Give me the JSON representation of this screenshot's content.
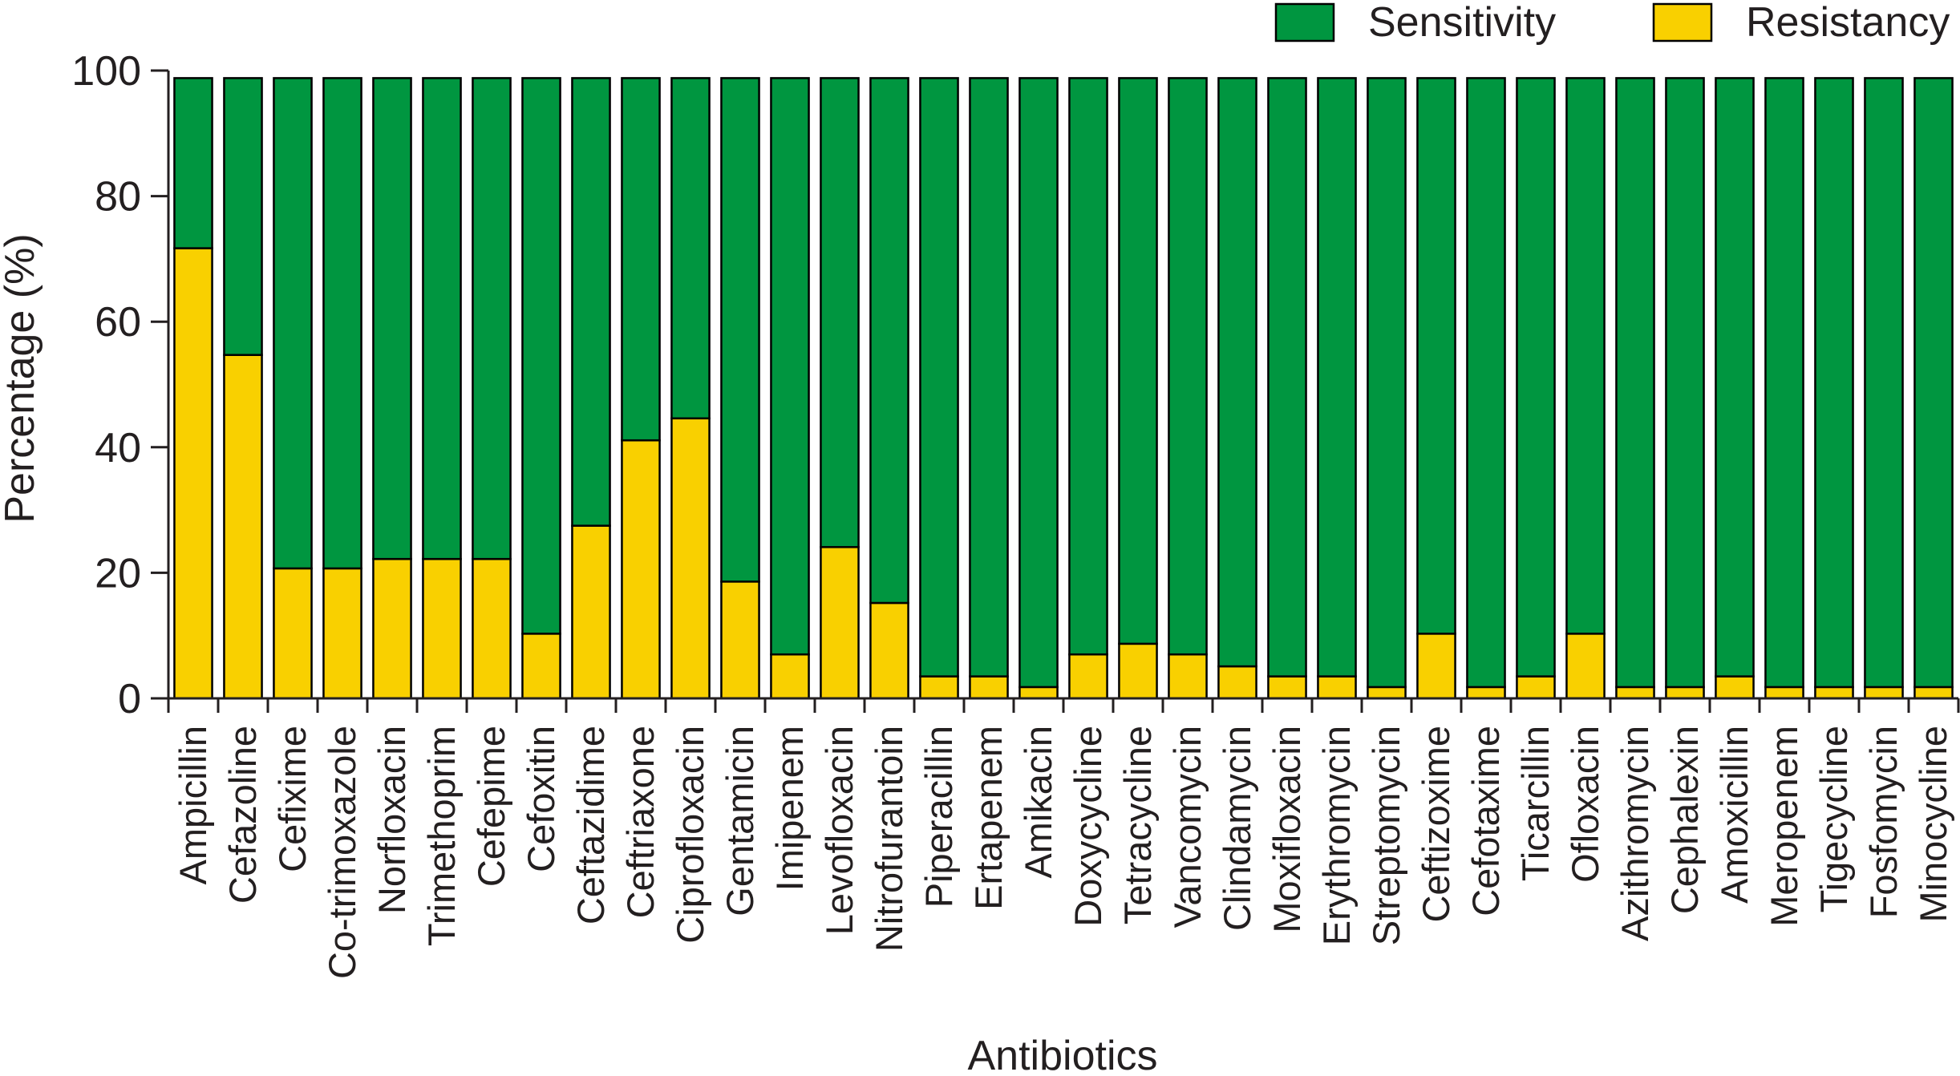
{
  "chart_data": {
    "type": "bar",
    "stacked": true,
    "xlabel": "Antibiotics",
    "ylabel": "Percentage (%)",
    "ylim": [
      0,
      100
    ],
    "yticks": [
      0,
      20,
      40,
      60,
      80,
      100
    ],
    "grid": false,
    "legend_position": "top-right",
    "categories": [
      "Ampicillin",
      "Cefazoline",
      "Cefixime",
      "Co-trimoxazole",
      "Norfloxacin",
      "Trimethoprim",
      "Cefepime",
      "Cefoxitin",
      "Ceftazidime",
      "Ceftriaxone",
      "Ciprofloxacin",
      "Gentamicin",
      "Imipenem",
      "Levofloxacin",
      "Nitrofurantoin",
      "Piperacillin",
      "Ertapenem",
      "Amikacin",
      "Doxycycline",
      "Tetracycline",
      "Vancomycin",
      "Clindamycin",
      "Moxifloxacin",
      "Erythromycin",
      "Streptomycin",
      "Ceftizoxime",
      "Cefotaxime",
      "Ticarcillin",
      "Ofloxacin",
      "Azithromycin",
      "Cephalexin",
      "Amoxicillin",
      "Meropenem",
      "Tigecycline",
      "Fosfomycin",
      "Minocycline"
    ],
    "series": [
      {
        "name": "Resistancy",
        "color": "#f9d000",
        "values": [
          71.7,
          54.7,
          20.7,
          20.7,
          22.2,
          22.2,
          22.2,
          10.3,
          27.5,
          41.1,
          44.6,
          18.6,
          7,
          24.1,
          15.2,
          3.5,
          3.5,
          1.8,
          7,
          8.7,
          7,
          5.1,
          3.5,
          3.5,
          1.8,
          10.3,
          1.8,
          3.5,
          10.3,
          1.8,
          1.8,
          3.5,
          1.8,
          1.8,
          1.8,
          1.8
        ]
      },
      {
        "name": "Sensitivity",
        "color": "#009640",
        "values": [
          27.1,
          44.1,
          78.1,
          78.1,
          76.6,
          76.6,
          76.6,
          88.5,
          71.3,
          57.7,
          54.2,
          80.2,
          91.8,
          74.7,
          83.6,
          95.3,
          95.3,
          97.0,
          91.8,
          90.1,
          91.8,
          93.7,
          95.3,
          95.3,
          97.0,
          88.5,
          97.0,
          95.3,
          88.5,
          97.0,
          97.0,
          95.3,
          97.0,
          97.0,
          97.0,
          97.0
        ]
      }
    ],
    "legend": [
      {
        "label": "Sensitivity",
        "color": "#009640"
      },
      {
        "label": "Resistancy",
        "color": "#f9d000"
      }
    ]
  }
}
